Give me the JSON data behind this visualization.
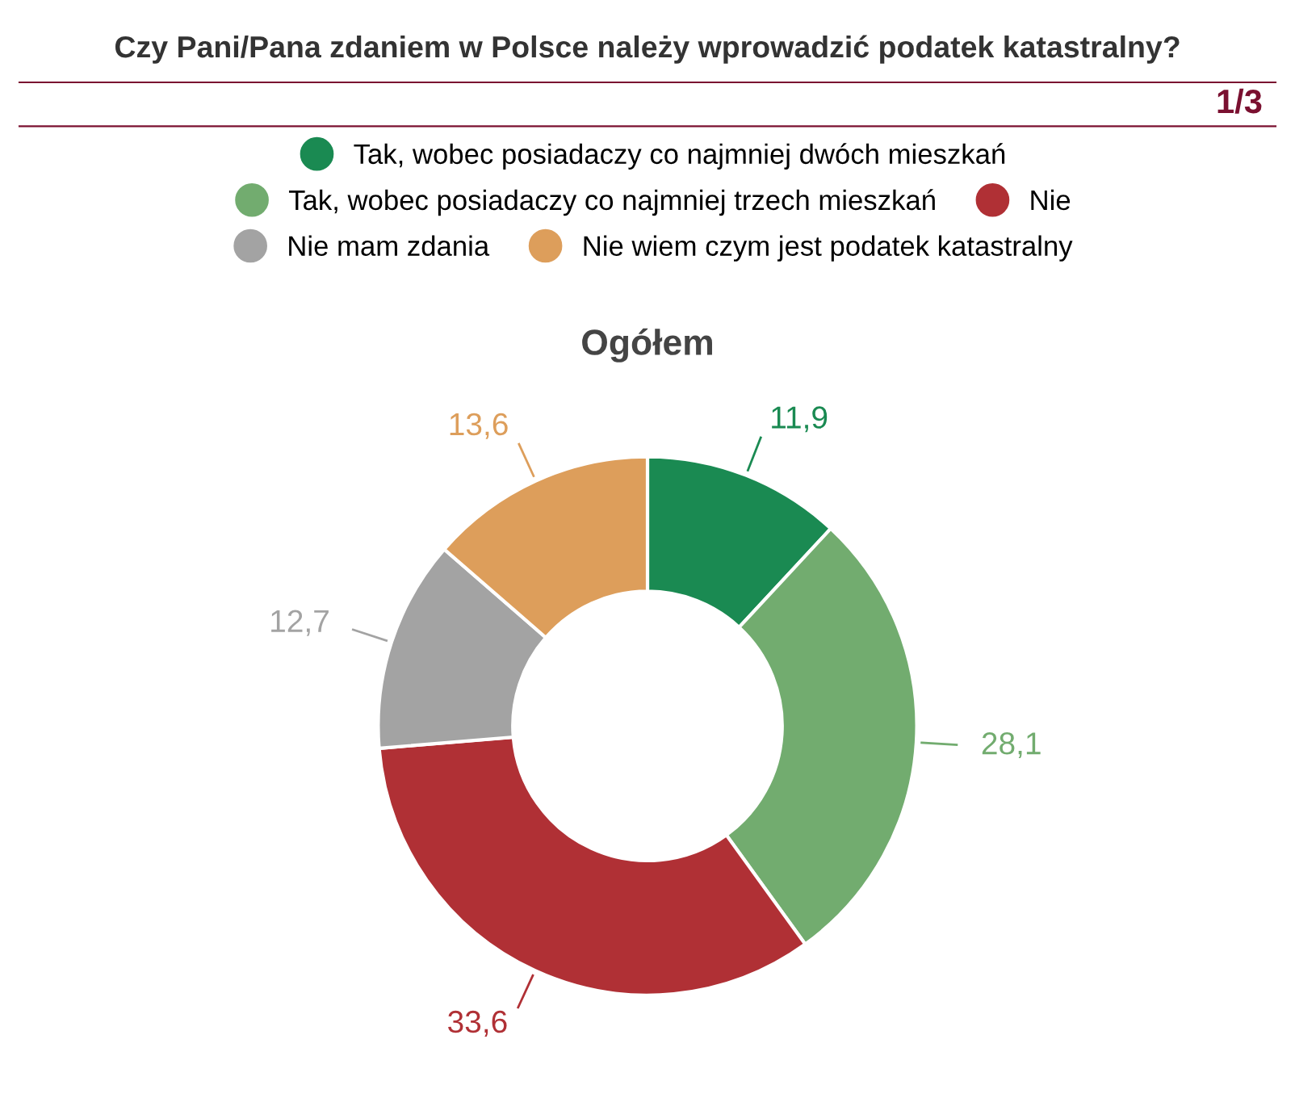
{
  "chart_data": {
    "type": "donut",
    "title": "Czy Pani/Pana zdaniem w Polsce należy wprowadzić podatek katastralny?",
    "subtitle": "Ogółem",
    "annotations": [
      "1/3"
    ],
    "categories": [
      "Tak, wobec posiadaczy co najmniej dwóch mieszkań",
      "Tak, wobec posiadaczy co najmniej trzech mieszkań",
      "Nie",
      "Nie mam zdania",
      "Nie wiem czym jest podatek katastralny"
    ],
    "values": [
      11.9,
      28.1,
      33.6,
      12.7,
      13.6
    ],
    "value_labels": [
      "11,9",
      "28,1",
      "33,6",
      "12,7",
      "13,6"
    ],
    "colors": [
      "#1a8a52",
      "#72ac6f",
      "#b03035",
      "#a3a3a3",
      "#dd9e5b"
    ],
    "legend": "top"
  }
}
